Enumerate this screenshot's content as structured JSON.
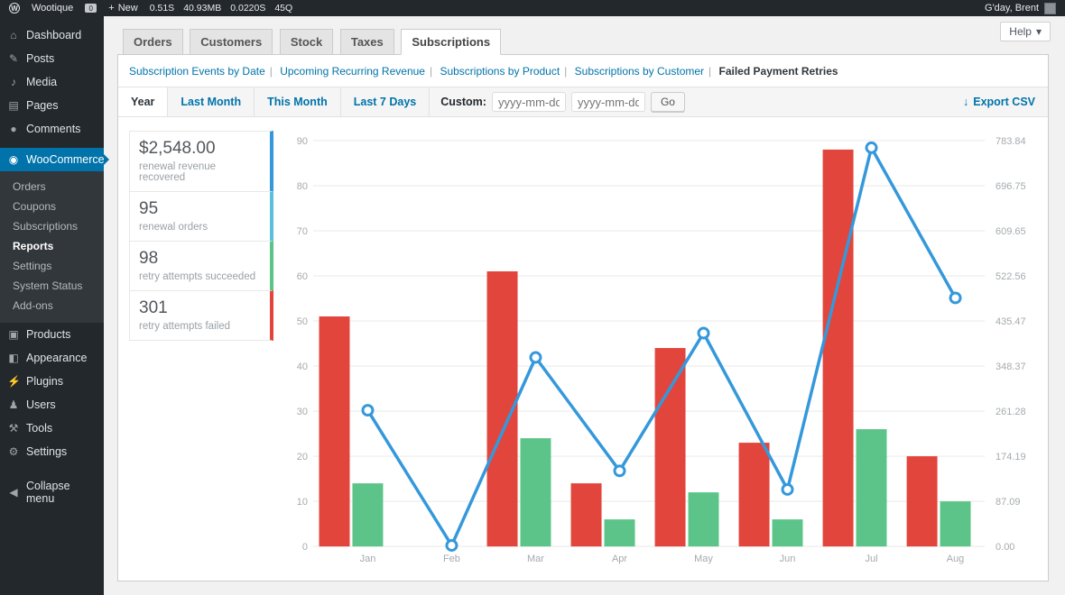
{
  "admin_bar": {
    "wp_logo": "W",
    "site_name": "Wootique",
    "comment_count": "0",
    "plus": "+",
    "new_label": "New",
    "stats": [
      "0.51S",
      "40.93MB",
      "0.0220S",
      "45Q"
    ],
    "greeting": "G'day, Brent"
  },
  "sidebar": {
    "items": [
      "Dashboard",
      "Posts",
      "Media",
      "Pages",
      "Comments",
      "WooCommerce",
      "Products",
      "Appearance",
      "Plugins",
      "Users",
      "Tools",
      "Settings",
      "Collapse menu"
    ],
    "submenu": [
      "Orders",
      "Coupons",
      "Subscriptions",
      "Reports",
      "Settings",
      "System Status",
      "Add-ons"
    ]
  },
  "icons": {
    "dashboard": "⌂",
    "posts": "✎",
    "media": "♪",
    "pages": "▤",
    "comments": "●",
    "woocommerce": "◉",
    "products": "▣",
    "appearance": "◧",
    "plugins": "⚡",
    "users": "♟",
    "tools": "⚒",
    "settings": "⚙",
    "collapse": "◀",
    "export": "↓",
    "help_caret": "▾"
  },
  "help_label": "Help",
  "tabs": [
    "Orders",
    "Customers",
    "Stock",
    "Taxes",
    "Subscriptions"
  ],
  "subnav": [
    "Subscription Events by Date",
    "Upcoming Recurring Revenue",
    "Subscriptions by Product",
    "Subscriptions by Customer",
    "Failed Payment Retries"
  ],
  "toolbar": {
    "ranges": [
      "Year",
      "Last Month",
      "This Month",
      "Last 7 Days"
    ],
    "active_range": "Year",
    "custom_label": "Custom:",
    "date_placeholder": "yyyy-mm-dd",
    "go_label": "Go",
    "export_label": "Export CSV"
  },
  "legend": [
    {
      "value": "$2,548.00",
      "label": "renewal revenue recovered",
      "color": "#3498db"
    },
    {
      "value": "95",
      "label": "renewal orders",
      "color": "#5bc0de"
    },
    {
      "value": "98",
      "label": "retry attempts succeeded",
      "color": "#5cc488"
    },
    {
      "value": "301",
      "label": "retry attempts failed",
      "color": "#e2453c"
    }
  ],
  "chart_data": {
    "type": "mixed",
    "categories": [
      "Jan",
      "Feb",
      "Mar",
      "Apr",
      "May",
      "Jun",
      "Jul",
      "Aug"
    ],
    "series": [
      {
        "name": "retry attempts failed",
        "type": "bar",
        "axis": "left",
        "color": "#e2453c",
        "values": [
          51,
          0,
          61,
          14,
          44,
          23,
          88,
          20
        ]
      },
      {
        "name": "retry attempts succeeded",
        "type": "bar",
        "axis": "left",
        "color": "#5cc488",
        "values": [
          14,
          0,
          24,
          6,
          12,
          6,
          26,
          10
        ]
      },
      {
        "name": "renewal revenue recovered",
        "type": "line",
        "axis": "right",
        "color": "#3498db",
        "values": [
          263,
          2,
          365,
          146,
          412,
          110,
          770,
          480
        ]
      }
    ],
    "left_axis": {
      "min": 0,
      "max": 90,
      "ticks": [
        "0",
        "10",
        "20",
        "30",
        "40",
        "50",
        "60",
        "70",
        "80",
        "90"
      ]
    },
    "right_axis": {
      "min": 0,
      "max": 783.84,
      "ticks": [
        "0.00",
        "87.09",
        "174.19",
        "261.28",
        "348.37",
        "435.47",
        "522.56",
        "609.65",
        "696.75",
        "783.84"
      ]
    },
    "grid": true,
    "legend_position": "left-column"
  }
}
